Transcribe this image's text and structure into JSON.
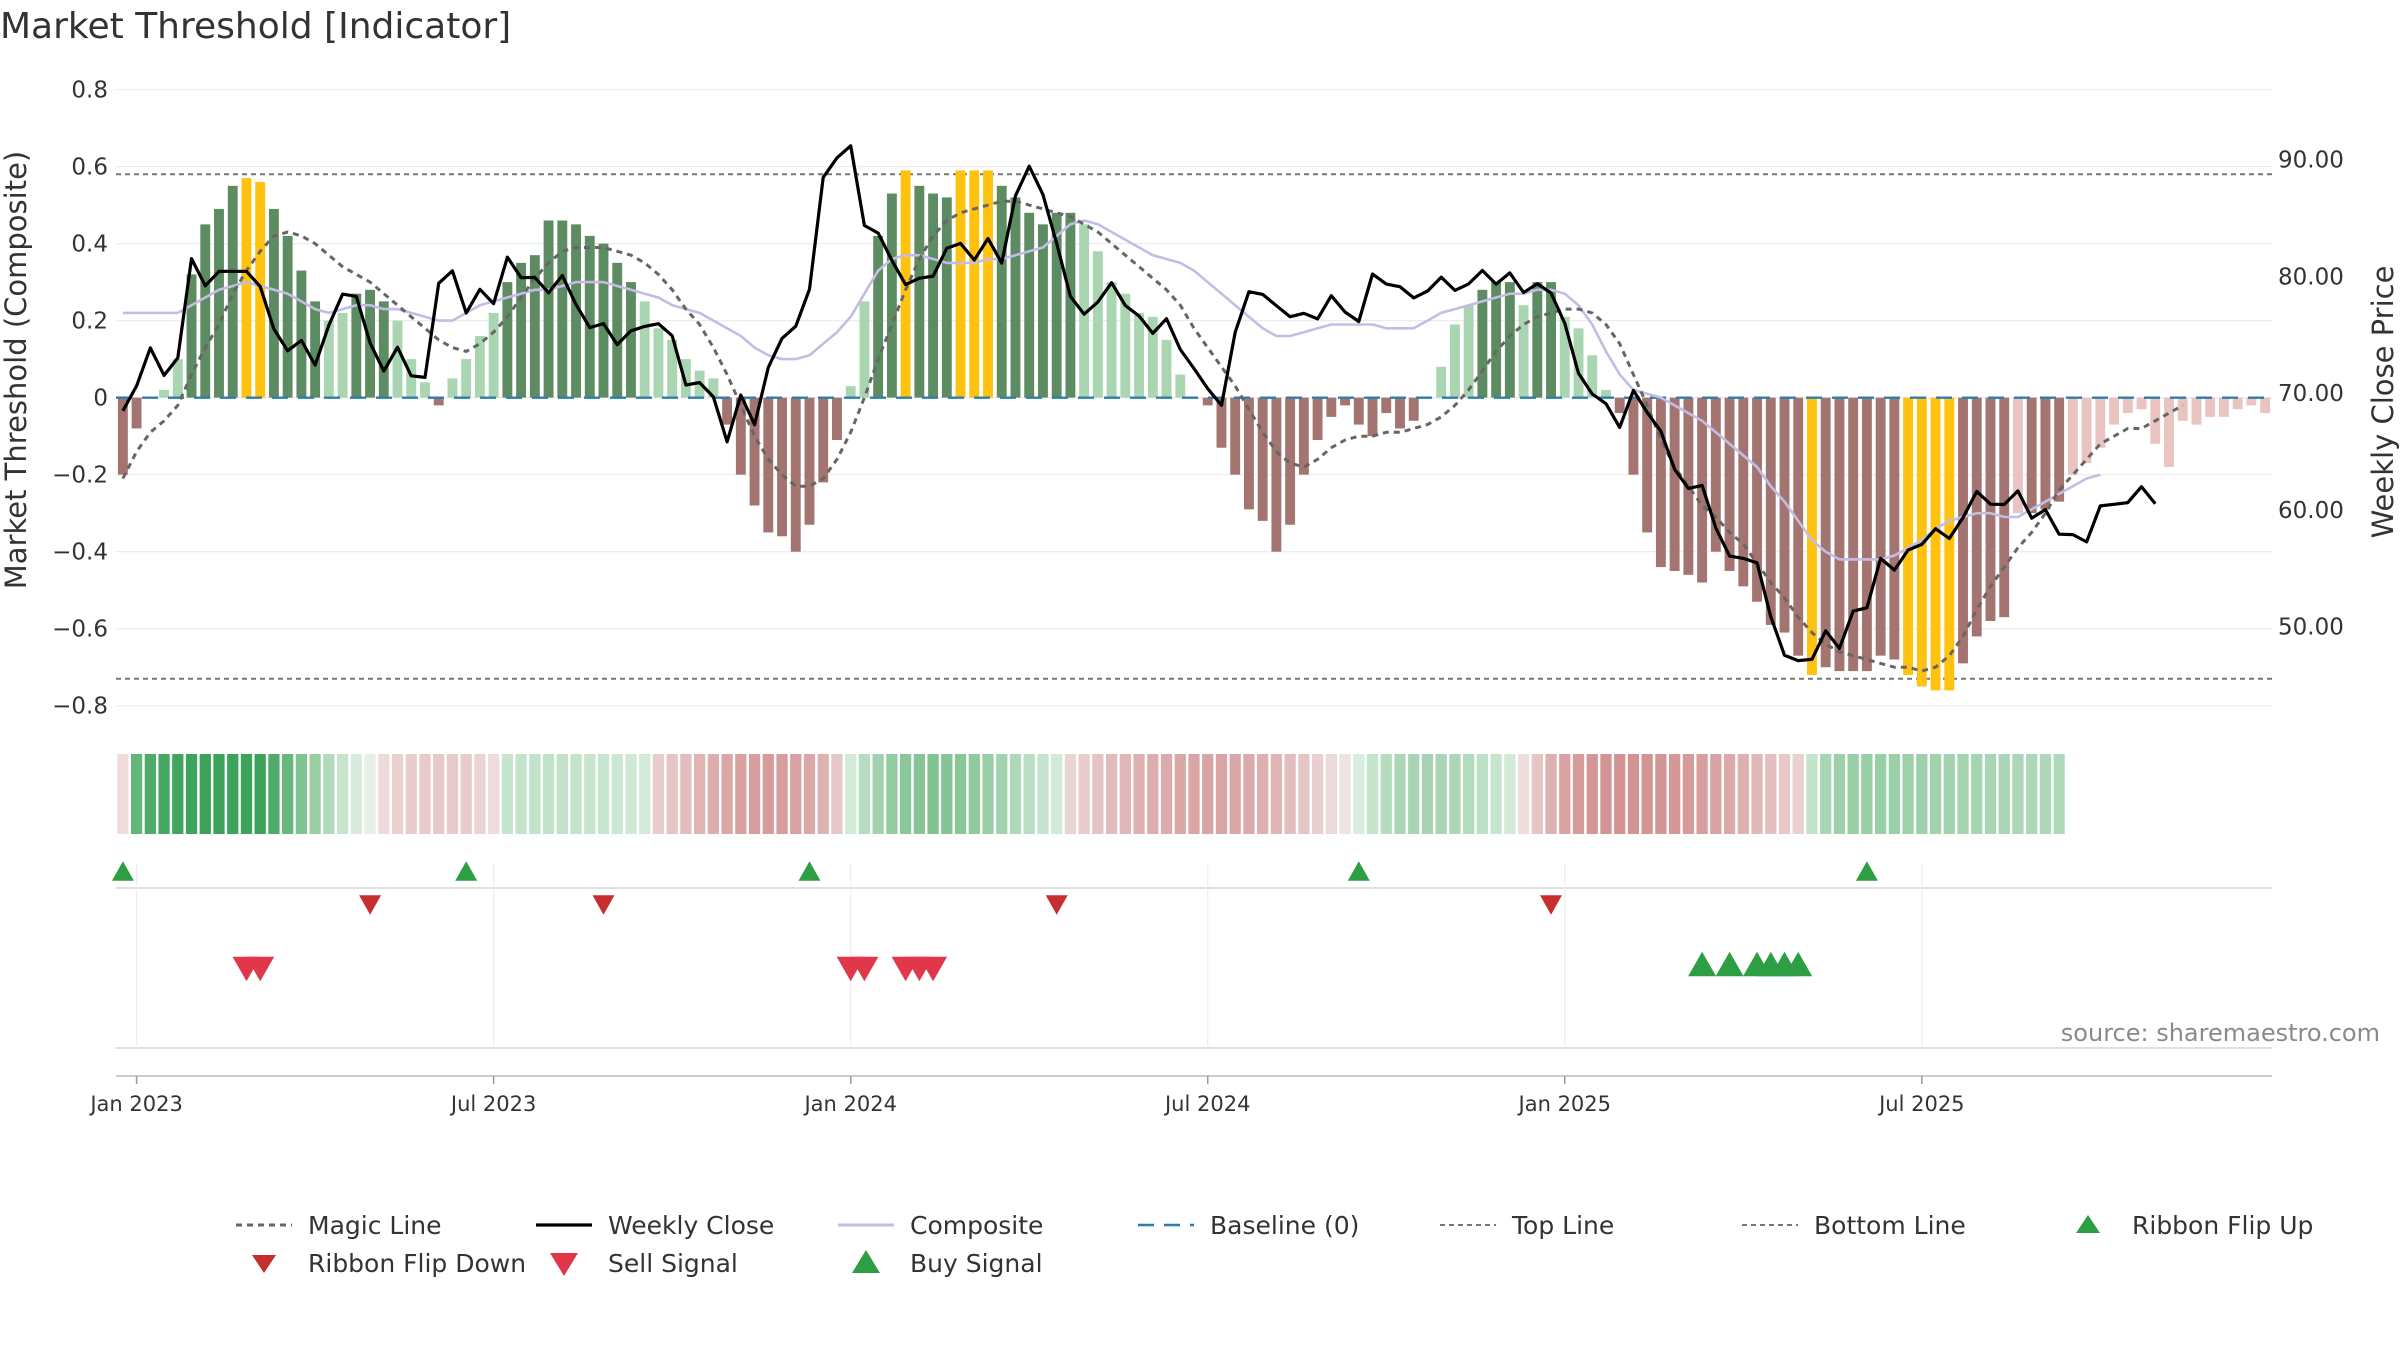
{
  "chart_data": {
    "type": "bar",
    "title": "Market Threshold [Indicator]",
    "ylabel_left": "Market Threshold (Composite)",
    "ylabel_right": "Weekly Close Price",
    "source": "source: sharemaestro.com",
    "ylim_left": [
      -0.85,
      0.83
    ],
    "ylim_right": [
      41.57,
      97.0
    ],
    "y_ticks_left": [
      {
        "v": 0.8,
        "label": "0.8"
      },
      {
        "v": 0.6,
        "label": "0.6"
      },
      {
        "v": 0.4,
        "label": "0.4"
      },
      {
        "v": 0.2,
        "label": "0.2"
      },
      {
        "v": 0,
        "label": "0"
      },
      {
        "v": -0.2,
        "label": "−0.2"
      },
      {
        "v": -0.4,
        "label": "−0.4"
      },
      {
        "v": -0.6,
        "label": "−0.6"
      },
      {
        "v": -0.8,
        "label": "−0.8"
      }
    ],
    "y_ticks_right": [
      {
        "v": 90,
        "label": "90.00"
      },
      {
        "v": 80,
        "label": "80.00"
      },
      {
        "v": 70,
        "label": "70.00"
      },
      {
        "v": 60,
        "label": "60.00"
      },
      {
        "v": 50,
        "label": "50.00"
      }
    ],
    "x_ticks": [
      {
        "week": 1,
        "label": "Jan 2023"
      },
      {
        "week": 27,
        "label": "Jul 2023"
      },
      {
        "week": 53,
        "label": "Jan 2024"
      },
      {
        "week": 79,
        "label": "Jul 2024"
      },
      {
        "week": 105,
        "label": "Jan 2025"
      },
      {
        "week": 131,
        "label": "Jul 2025"
      }
    ],
    "top_line": 0.58,
    "bottom_line": -0.73,
    "baseline": 0,
    "composite": [
      -0.2,
      -0.08,
      0.0,
      0.02,
      0.1,
      0.32,
      0.45,
      0.49,
      0.55,
      0.57,
      0.56,
      0.49,
      0.42,
      0.33,
      0.25,
      0.2,
      0.22,
      0.27,
      0.28,
      0.25,
      0.2,
      0.1,
      0.04,
      -0.02,
      0.05,
      0.1,
      0.16,
      0.22,
      0.3,
      0.35,
      0.37,
      0.46,
      0.46,
      0.45,
      0.42,
      0.4,
      0.35,
      0.3,
      0.25,
      0.18,
      0.15,
      0.1,
      0.07,
      0.05,
      -0.07,
      -0.2,
      -0.28,
      -0.35,
      -0.36,
      -0.4,
      -0.33,
      -0.22,
      -0.11,
      0.03,
      0.25,
      0.42,
      0.53,
      0.59,
      0.55,
      0.53,
      0.52,
      0.59,
      0.59,
      0.59,
      0.55,
      0.52,
      0.48,
      0.45,
      0.48,
      0.48,
      0.45,
      0.38,
      0.3,
      0.27,
      0.22,
      0.21,
      0.15,
      0.06,
      0.0,
      -0.02,
      -0.13,
      -0.2,
      -0.29,
      -0.32,
      -0.4,
      -0.33,
      -0.2,
      -0.11,
      -0.05,
      -0.02,
      -0.07,
      -0.1,
      -0.04,
      -0.08,
      -0.06,
      0.0,
      0.08,
      0.19,
      0.24,
      0.28,
      0.3,
      0.3,
      0.24,
      0.3,
      0.3,
      0.21,
      0.18,
      0.11,
      0.02,
      -0.04,
      -0.2,
      -0.35,
      -0.44,
      -0.45,
      -0.46,
      -0.48,
      -0.4,
      -0.45,
      -0.49,
      -0.53,
      -0.59,
      -0.61,
      -0.67,
      -0.72,
      -0.7,
      -0.71,
      -0.71,
      -0.71,
      -0.67,
      -0.68,
      -0.72,
      -0.75,
      -0.76,
      -0.76,
      -0.69,
      -0.62,
      -0.58,
      -0.57,
      -0.3,
      -0.3,
      -0.29,
      -0.27,
      -0.2,
      -0.17,
      -0.13,
      -0.07,
      -0.04,
      -0.03,
      -0.12,
      -0.18,
      -0.06,
      -0.07,
      -0.05,
      -0.05,
      -0.03,
      -0.02,
      -0.04
    ],
    "weekly_close": [
      68.49,
      70.62,
      73.88,
      71.52,
      73.02,
      81.53,
      79.2,
      80.43,
      80.44,
      80.43,
      79.14,
      75.49,
      73.63,
      74.52,
      72.4,
      75.82,
      78.49,
      78.29,
      74.3,
      71.89,
      73.93,
      71.49,
      71.35,
      79.41,
      80.48,
      76.87,
      78.9,
      77.66,
      81.65,
      79.89,
      79.92,
      78.6,
      80.08,
      77.59,
      75.62,
      75.96,
      74.16,
      75.34,
      75.72,
      75.95,
      74.91,
      70.7,
      70.9,
      69.68,
      65.83,
      69.84,
      67.3,
      72.21,
      74.69,
      75.74,
      78.91,
      88.48,
      90.16,
      91.19,
      84.36,
      83.71,
      81.37,
      79.3,
      79.85,
      80.02,
      82.42,
      82.83,
      81.41,
      83.25,
      81.14,
      86.92,
      89.44,
      87.03,
      82.82,
      78.29,
      76.76,
      77.82,
      79.46,
      77.51,
      76.61,
      75.12,
      76.38,
      73.74,
      72.11,
      70.39,
      68.96,
      75.21,
      78.69,
      78.46,
      77.49,
      76.55,
      76.84,
      76.36,
      78.35,
      76.94,
      76.14,
      80.21,
      79.34,
      79.12,
      78.16,
      78.74,
      79.93,
      78.8,
      79.36,
      80.51,
      79.34,
      80.3,
      78.62,
      79.38,
      78.58,
      75.98,
      71.7,
      69.93,
      69.1,
      67.07,
      70.24,
      68.34,
      66.73,
      63.48,
      61.84,
      62.1,
      58.46,
      56.04,
      55.84,
      55.47,
      50.85,
      47.55,
      47.09,
      47.2,
      49.64,
      48.13,
      51.33,
      51.61,
      55.84,
      54.84,
      56.56,
      57.04,
      58.39,
      57.55,
      59.34,
      61.58,
      60.49,
      60.46,
      61.63,
      59.29,
      60.02,
      57.92,
      57.88,
      57.26,
      60.34,
      60.48,
      60.62,
      61.99,
      60.52
    ],
    "magic_line": [
      -0.21,
      -0.14,
      -0.09,
      -0.06,
      -0.02,
      0.06,
      0.13,
      0.19,
      0.27,
      0.33,
      0.38,
      0.42,
      0.43,
      0.42,
      0.4,
      0.37,
      0.34,
      0.32,
      0.3,
      0.27,
      0.24,
      0.21,
      0.18,
      0.15,
      0.13,
      0.12,
      0.14,
      0.17,
      0.21,
      0.26,
      0.31,
      0.35,
      0.38,
      0.39,
      0.39,
      0.39,
      0.38,
      0.37,
      0.35,
      0.32,
      0.28,
      0.23,
      0.19,
      0.13,
      0.06,
      -0.02,
      -0.1,
      -0.16,
      -0.2,
      -0.23,
      -0.23,
      -0.21,
      -0.16,
      -0.09,
      0.0,
      0.1,
      0.19,
      0.28,
      0.36,
      0.42,
      0.46,
      0.48,
      0.49,
      0.5,
      0.51,
      0.51,
      0.5,
      0.49,
      0.48,
      0.47,
      0.45,
      0.43,
      0.4,
      0.37,
      0.34,
      0.31,
      0.28,
      0.24,
      0.18,
      0.13,
      0.08,
      0.03,
      -0.03,
      -0.09,
      -0.14,
      -0.17,
      -0.18,
      -0.16,
      -0.13,
      -0.11,
      -0.1,
      -0.1,
      -0.09,
      -0.09,
      -0.08,
      -0.07,
      -0.05,
      -0.02,
      0.02,
      0.07,
      0.12,
      0.16,
      0.19,
      0.21,
      0.22,
      0.23,
      0.23,
      0.22,
      0.19,
      0.14,
      0.06,
      -0.02,
      -0.11,
      -0.18,
      -0.23,
      -0.28,
      -0.31,
      -0.35,
      -0.38,
      -0.43,
      -0.48,
      -0.52,
      -0.57,
      -0.61,
      -0.64,
      -0.66,
      -0.67,
      -0.68,
      -0.69,
      -0.7,
      -0.7,
      -0.71,
      -0.7,
      -0.67,
      -0.62,
      -0.55,
      -0.49,
      -0.44,
      -0.39,
      -0.35,
      -0.3,
      -0.24,
      -0.2,
      -0.16,
      -0.12,
      -0.1,
      -0.08,
      -0.08,
      -0.06,
      -0.04,
      -0.02
    ],
    "composite_line": [
      0.22,
      0.22,
      0.22,
      0.22,
      0.22,
      0.24,
      0.26,
      0.28,
      0.29,
      0.3,
      0.29,
      0.28,
      0.27,
      0.25,
      0.23,
      0.22,
      0.23,
      0.24,
      0.24,
      0.23,
      0.23,
      0.22,
      0.21,
      0.2,
      0.2,
      0.22,
      0.24,
      0.25,
      0.26,
      0.27,
      0.28,
      0.28,
      0.29,
      0.3,
      0.3,
      0.3,
      0.29,
      0.28,
      0.27,
      0.26,
      0.24,
      0.23,
      0.22,
      0.2,
      0.18,
      0.16,
      0.13,
      0.11,
      0.1,
      0.1,
      0.11,
      0.14,
      0.17,
      0.21,
      0.27,
      0.33,
      0.36,
      0.37,
      0.37,
      0.36,
      0.35,
      0.35,
      0.35,
      0.36,
      0.36,
      0.37,
      0.38,
      0.39,
      0.42,
      0.45,
      0.46,
      0.45,
      0.43,
      0.41,
      0.39,
      0.37,
      0.36,
      0.35,
      0.33,
      0.3,
      0.27,
      0.24,
      0.21,
      0.18,
      0.16,
      0.16,
      0.17,
      0.18,
      0.19,
      0.19,
      0.19,
      0.19,
      0.18,
      0.18,
      0.18,
      0.2,
      0.22,
      0.23,
      0.24,
      0.25,
      0.26,
      0.27,
      0.27,
      0.28,
      0.28,
      0.27,
      0.24,
      0.19,
      0.12,
      0.06,
      0.02,
      0.01,
      0.0,
      -0.02,
      -0.04,
      -0.06,
      -0.09,
      -0.12,
      -0.15,
      -0.18,
      -0.23,
      -0.27,
      -0.32,
      -0.37,
      -0.4,
      -0.42,
      -0.42,
      -0.42,
      -0.42,
      -0.41,
      -0.39,
      -0.37,
      -0.34,
      -0.32,
      -0.31,
      -0.3,
      -0.3,
      -0.31,
      -0.31,
      -0.29,
      -0.27,
      -0.25,
      -0.23,
      -0.21,
      -0.2
    ],
    "ribbon_colors": [
      "#f1dcdc",
      "#63b77a",
      "#4eab6a",
      "#45a862",
      "#40a55e",
      "#3ea45c",
      "#3da35b",
      "#3da35b",
      "#3da35b",
      "#3da35b",
      "#3da35b",
      "#4fab6a",
      "#66b87b",
      "#80c491",
      "#9acfa6",
      "#b1dabb",
      "#c7e4cd",
      "#d8ebdc",
      "#e6f0e7",
      "#eddada",
      "#ebd0d0",
      "#e9cccc",
      "#e8caca",
      "#e7c9c9",
      "#e7c9c9",
      "#e8cccc",
      "#ebd3d3",
      "#eedcdc",
      "#c6e5ce",
      "#c3e4cb",
      "#c1e3c9",
      "#c1e3c9",
      "#c2e3ca",
      "#c3e4cb",
      "#c5e5cd",
      "#c8e6cf",
      "#cbe7d2",
      "#cfe9d5",
      "#d3ead8",
      "#e9cdcd",
      "#e6c4c4",
      "#e3bcbc",
      "#e1b4b4",
      "#deadad",
      "#dba6a6",
      "#d9a0a0",
      "#d89d9d",
      "#d79b9b",
      "#d89c9c",
      "#d9a1a1",
      "#dba8a8",
      "#dfb2b2",
      "#e6c8c8",
      "#d2ead8",
      "#b6ddc0",
      "#a3d3ae",
      "#94cca2",
      "#8ac79a",
      "#84c495",
      "#82c393",
      "#84c495",
      "#89c799",
      "#90ca9f",
      "#99cfa6",
      "#a3d3ae",
      "#aed8b8",
      "#badec3",
      "#c6e4cd",
      "#d1e9d7",
      "#ebd4d4",
      "#e8cccc",
      "#e5c4c4",
      "#e2bcbc",
      "#e0b6b6",
      "#deb1b1",
      "#dcadad",
      "#dbaaaa",
      "#daa7a7",
      "#d9a5a5",
      "#d9a4a4",
      "#d9a4a4",
      "#daa6a6",
      "#dbaaaa",
      "#ddafaf",
      "#dfb5b5",
      "#e2bdbd",
      "#e5c6c6",
      "#e9cfcf",
      "#ecd9d9",
      "#efe2e2",
      "#d9eddf",
      "#c4e4cc",
      "#b5dcbf",
      "#acd7b6",
      "#a7d5b3",
      "#a6d4b2",
      "#a8d5b3",
      "#acd7b7",
      "#b3dbbd",
      "#bcdfc5",
      "#c7e5ce",
      "#d2ead8",
      "#eedddd",
      "#e6c5c5",
      "#dfb0b0",
      "#d9a3a3",
      "#d69b9b",
      "#d49696",
      "#d39494",
      "#d39393",
      "#d39393",
      "#d39494",
      "#d49595",
      "#d59797",
      "#d69a9a",
      "#d89e9e",
      "#daa3a3",
      "#dca9a9",
      "#deb0b0",
      "#e1b7b7",
      "#e4bfbf",
      "#e7c7c7",
      "#ead0d0",
      "#c3e4cb",
      "#aad6b5",
      "#9ed1ab",
      "#99cfa6",
      "#98cfa5",
      "#99cfa6",
      "#9ad0a7",
      "#9cd1a9",
      "#9ed1ab",
      "#a0d2ac",
      "#a2d3ae",
      "#a4d4af",
      "#a6d4b1",
      "#a8d5b3",
      "#aad6b5",
      "#acd7b6",
      "#add8b7",
      "#aed8b8",
      "#afd9b9"
    ],
    "ribbon_flip_up_weeks": [
      0,
      25,
      50,
      90,
      127
    ],
    "ribbon_flip_down_weeks": [
      18,
      35,
      68,
      104
    ],
    "sell_signal_weeks": [
      9,
      10,
      53,
      54,
      57,
      58,
      59
    ],
    "buy_signal_weeks": [
      115,
      117,
      119,
      120,
      121,
      122
    ],
    "legend": [
      {
        "key": "magic",
        "label": "Magic Line"
      },
      {
        "key": "close",
        "label": "Weekly Close"
      },
      {
        "key": "composite",
        "label": "Composite"
      },
      {
        "key": "baseline",
        "label": "Baseline (0)"
      },
      {
        "key": "top",
        "label": "Top Line"
      },
      {
        "key": "bottom",
        "label": "Bottom Line"
      },
      {
        "key": "flipup",
        "label": "Ribbon Flip Up"
      },
      {
        "key": "flipdown",
        "label": "Ribbon Flip Down"
      },
      {
        "key": "sell",
        "label": "Sell Signal"
      },
      {
        "key": "buy",
        "label": "Buy Signal"
      }
    ],
    "colors": {
      "bar_light_green": "#a9d6b0",
      "bar_dark_green": "#5e8c62",
      "bar_light_red": "#eac4c1",
      "bar_dark_red": "#a47470",
      "bar_extreme": "#ffc20e",
      "close_line": "#000000",
      "magic_line": "#666666",
      "composite_line": "#c3bde6",
      "baseline": "#2f7ea8",
      "ref_lines": "#777777",
      "grid": "#ececec",
      "flip_up": "#2e9e44",
      "flip_down": "#c62f2f",
      "sell": "#e0374a",
      "buy": "#2e9e44"
    }
  }
}
